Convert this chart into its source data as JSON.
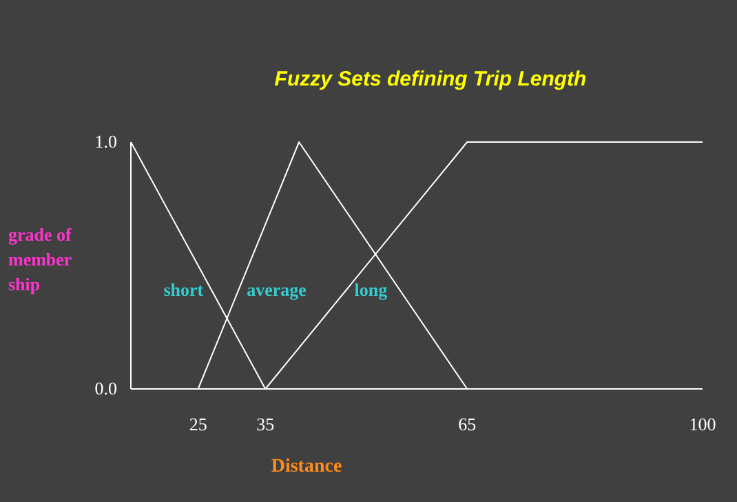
{
  "chart_data": {
    "type": "line",
    "title": "Fuzzy Sets defining Trip Length",
    "xlabel": "Distance",
    "ylabel": "grade of member ship",
    "xlim": [
      15,
      100
    ],
    "xticks": [
      25,
      35,
      65,
      100
    ],
    "ylim": [
      0,
      1
    ],
    "yticks": [
      {
        "value": 0,
        "label": "0.0"
      },
      {
        "value": 1,
        "label": "1.0"
      }
    ],
    "marker": "none",
    "line_style": "solid",
    "series": [
      {
        "name": "short",
        "color": "#ffffff",
        "x": [
          15,
          35
        ],
        "values": [
          1,
          0
        ]
      },
      {
        "name": "average",
        "color": "#ffffff",
        "x": [
          25,
          40,
          65
        ],
        "values": [
          0,
          1,
          0
        ]
      },
      {
        "name": "long",
        "color": "#ffffff",
        "x": [
          35,
          65,
          100
        ],
        "values": [
          0,
          1,
          1
        ]
      }
    ]
  }
}
